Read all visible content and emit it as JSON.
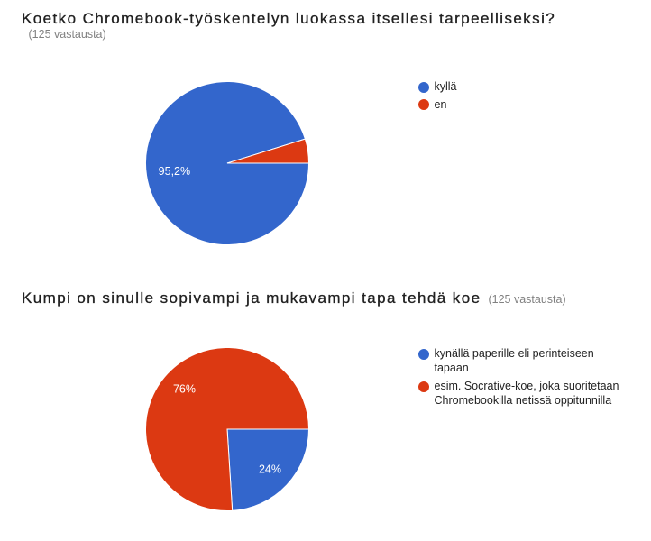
{
  "page": {
    "background": "#ffffff",
    "kind": "survey-results-summary"
  },
  "chart_data": [
    {
      "type": "pie",
      "title": "Koetko Chromebook-työskentelyn luokassa itsellesi tarpeelliseksi?",
      "subtitle": "(125 vastausta)",
      "subtitle_placement": "below-title",
      "categories": [
        "kyllä",
        "en"
      ],
      "values": [
        95.2,
        4.8
      ],
      "slice_labels": [
        "95,2%",
        ""
      ],
      "colors": [
        "#3366cc",
        "#dc3912"
      ],
      "legend_position": "right",
      "start_angle": 0,
      "direction": "clockwise"
    },
    {
      "type": "pie",
      "title": "Kumpi on sinulle sopivampi ja mukavampi tapa tehdä koe",
      "subtitle": "(125 vastausta)",
      "subtitle_placement": "inline-after-title",
      "categories": [
        "kynällä paperille eli perinteiseen tapaan",
        "esim. Socrative-koe, joka suoritetaan Chromebookilla netissä oppitunnilla"
      ],
      "values": [
        24,
        76
      ],
      "slice_labels": [
        "24%",
        "76%"
      ],
      "colors": [
        "#3366cc",
        "#dc3912"
      ],
      "legend_position": "right",
      "start_angle": 0,
      "direction": "clockwise"
    }
  ]
}
